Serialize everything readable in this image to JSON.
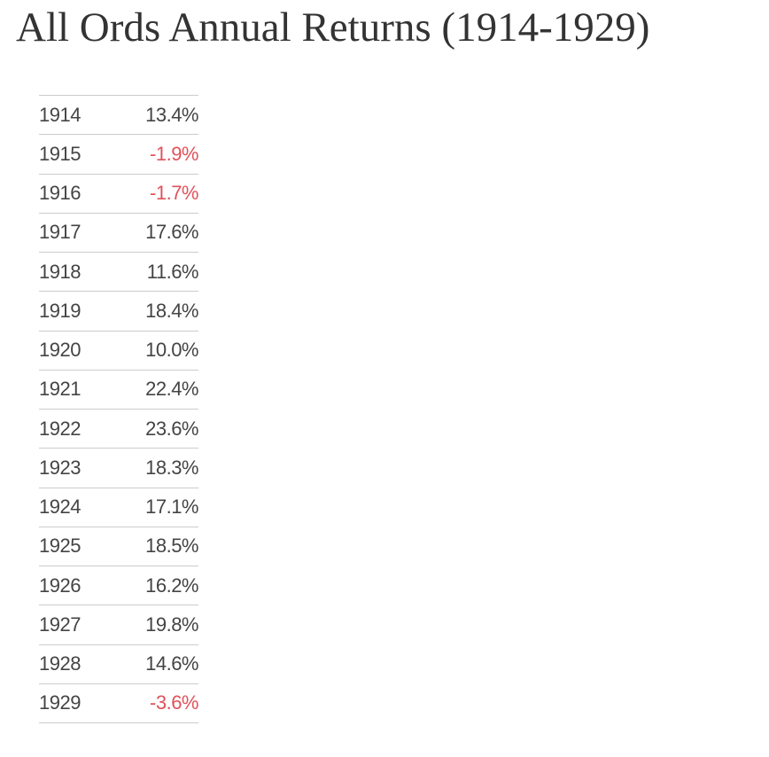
{
  "title": "All Ords Annual Returns (1914-1929)",
  "table": {
    "rows": [
      [
        "1914",
        "13.4%"
      ],
      [
        "1915",
        "-1.9%"
      ],
      [
        "1916",
        "-1.7%"
      ],
      [
        "1917",
        "17.6%"
      ],
      [
        "1918",
        "11.6%"
      ],
      [
        "1919",
        "18.4%"
      ],
      [
        "1920",
        "10.0%"
      ],
      [
        "1921",
        "22.4%"
      ],
      [
        "1922",
        "23.6%"
      ],
      [
        "1923",
        "18.3%"
      ],
      [
        "1924",
        "17.1%"
      ],
      [
        "1925",
        "18.5%"
      ],
      [
        "1926",
        "16.2%"
      ],
      [
        "1927",
        "19.8%"
      ],
      [
        "1928",
        "14.6%"
      ],
      [
        "1929",
        "-3.6%"
      ]
    ]
  }
}
